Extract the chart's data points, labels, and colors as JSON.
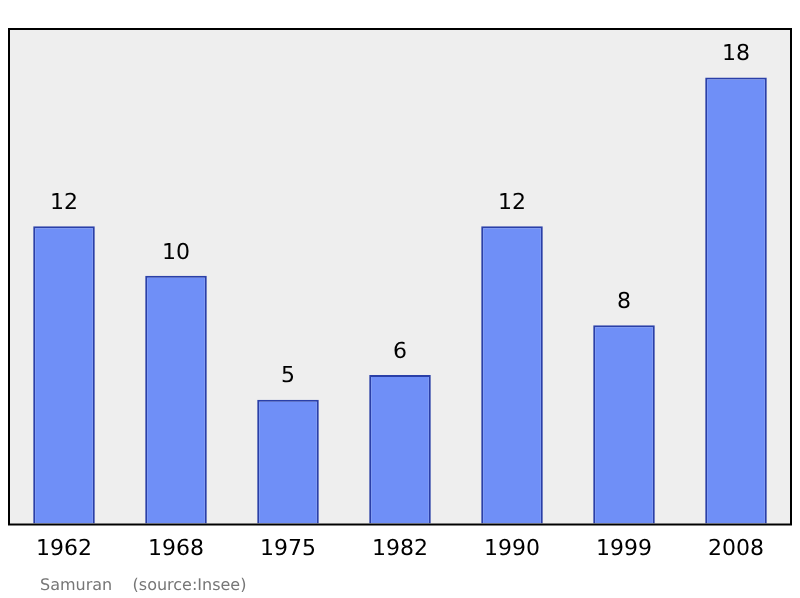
{
  "chart_data": {
    "type": "bar",
    "categories": [
      "1962",
      "1968",
      "1975",
      "1982",
      "1990",
      "1999",
      "2008"
    ],
    "values": [
      12,
      10,
      5,
      6,
      12,
      8,
      18
    ],
    "color": "#6f8ff7",
    "data_labels": true,
    "grid": false,
    "legend": false,
    "annotations": [
      "Samuran    (source:Insee)"
    ]
  }
}
